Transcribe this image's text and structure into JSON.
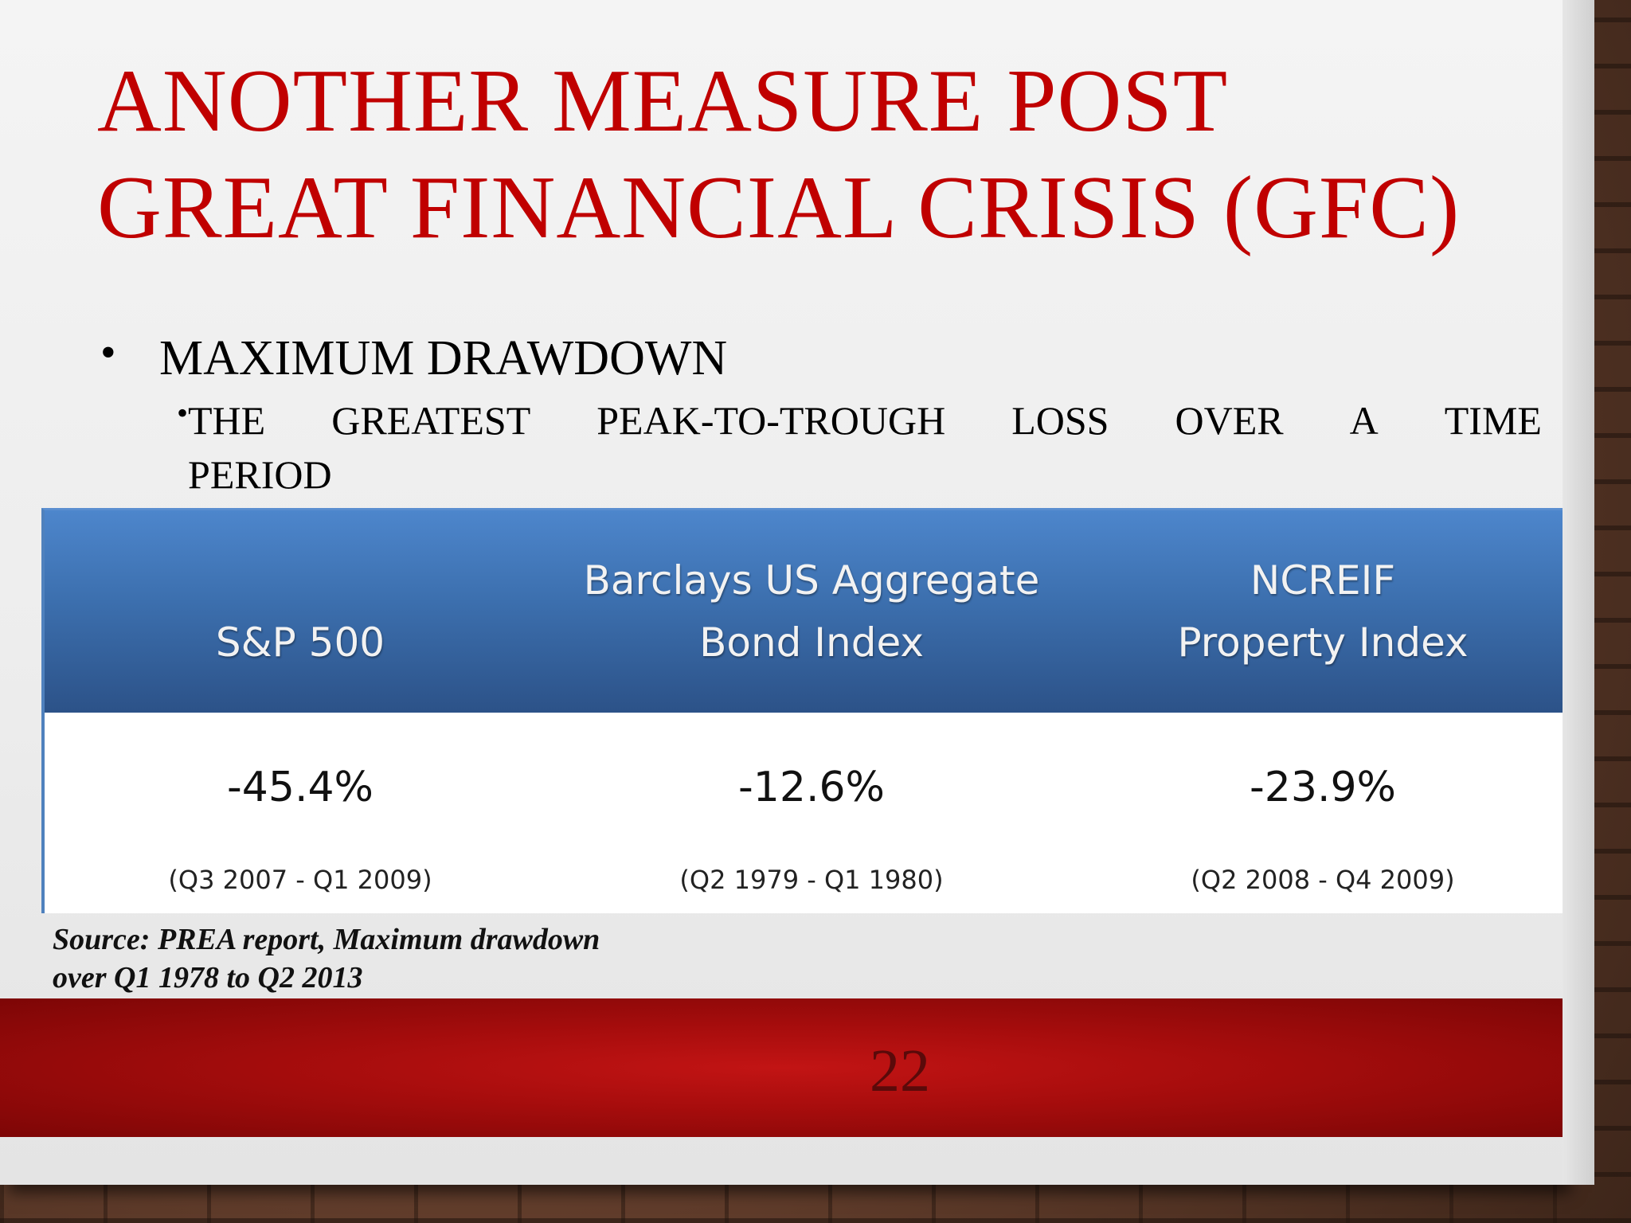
{
  "slide": {
    "title_line1": "ANOTHER MEASURE POST",
    "title_line2": "GREAT FINANCIAL CRISIS (GFC)",
    "bullet_level1": "MAXIMUM DRAWDOWN",
    "bullet_level2_line1_words": [
      "THE",
      "GREATEST",
      "PEAK-TO-TROUGH",
      "LOSS",
      "OVER",
      "A",
      "TIME"
    ],
    "bullet_level2_line2": "PERIOD",
    "bullet_glyph": "•",
    "source_line1": "Source: PREA report, Maximum drawdown",
    "source_line2": "over Q1 1978 to Q2 2013",
    "page_number": "22"
  },
  "table": {
    "columns": [
      {
        "header_line1": "",
        "header_line2": "S&P 500",
        "value": "-45.4%",
        "period": "(Q3 2007 - Q1 2009)"
      },
      {
        "header_line1": "Barclays US Aggregate",
        "header_line2": "Bond Index",
        "value": "-12.6%",
        "period": "(Q2 1979 - Q1 1980)"
      },
      {
        "header_line1": "NCREIF",
        "header_line2": "Property Index",
        "value": "-23.9%",
        "period": "(Q2 2008 - Q4 2009)"
      }
    ]
  },
  "colors": {
    "title_red": "#c00000",
    "header_blue": "#3c6fae",
    "footer_red": "#a80d0d",
    "page_number": "#5a0a0a"
  }
}
